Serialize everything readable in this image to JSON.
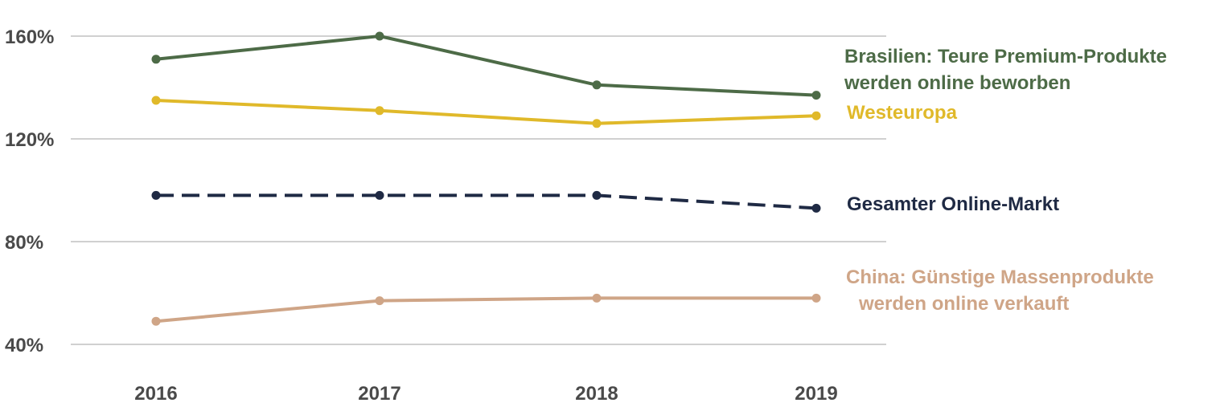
{
  "chart_data": {
    "type": "line",
    "title": "",
    "xlabel": "",
    "ylabel": "",
    "x": [
      "2016",
      "2017",
      "2018",
      "2019"
    ],
    "ylim": [
      40,
      160
    ],
    "yticks": [
      40,
      80,
      120,
      160
    ],
    "ytick_labels": [
      "40%",
      "80%",
      "120%",
      "160%"
    ],
    "grid": true,
    "legend": "inline-right",
    "series": [
      {
        "name": "Brasilien: Teure Premium-Produkte werden online beworben",
        "label_lines": [
          "Brasilien: Teure Premium-Produkte",
          "werden online beworben"
        ],
        "values": [
          151,
          160,
          141,
          137
        ],
        "color": "#4d6b47",
        "dashed": false
      },
      {
        "name": "Westeuropa",
        "label_lines": [
          "Westeuropa"
        ],
        "values": [
          135,
          131,
          126,
          129
        ],
        "color": "#e0b92a",
        "dashed": false
      },
      {
        "name": "Gesamter Online-Markt",
        "label_lines": [
          "Gesamter Online-Markt"
        ],
        "values": [
          98,
          98,
          98,
          93
        ],
        "color": "#1f2a44",
        "dashed": true
      },
      {
        "name": "China: Günstige Massenprodukte werden online verkauft",
        "label_lines": [
          "China: Günstige Massenprodukte",
          "werden online verkauft"
        ],
        "values": [
          49,
          57,
          58,
          58
        ],
        "color": "#cfa587",
        "dashed": false
      }
    ]
  }
}
